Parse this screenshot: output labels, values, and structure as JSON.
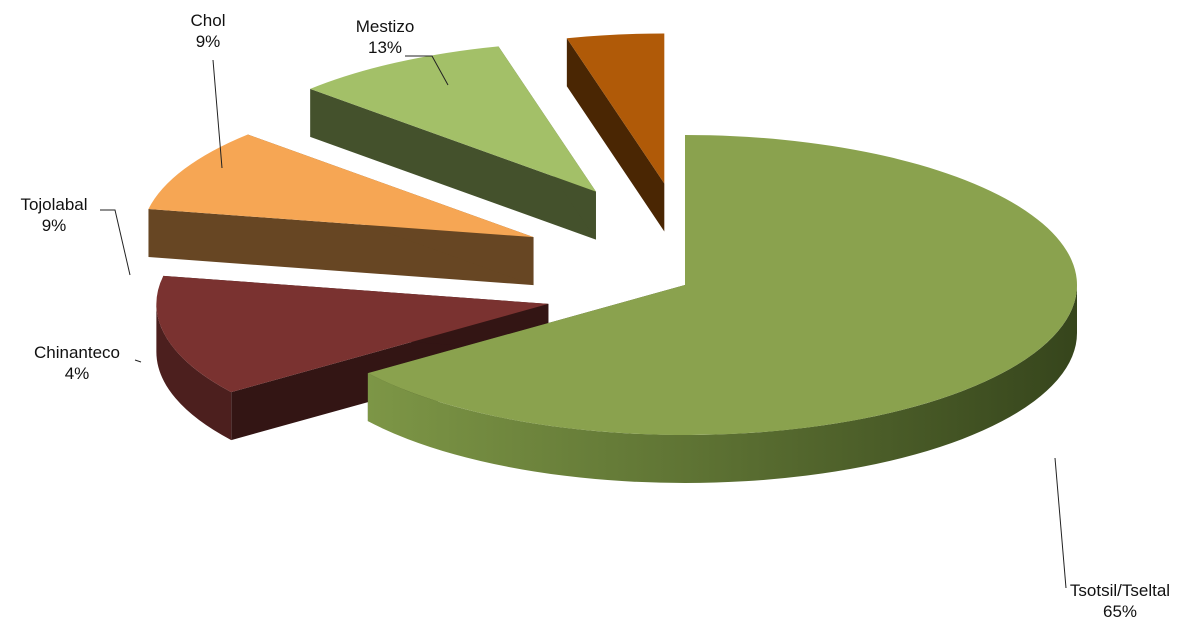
{
  "chart_data": {
    "type": "pie",
    "style": "3d-exploded",
    "slices": [
      {
        "label": "Tsotsil/Tseltal",
        "value": 65,
        "value_label": "65%",
        "color": "#8aa24e"
      },
      {
        "label": "Mestizo",
        "value": 13,
        "value_label": "13%",
        "color": "#7a3230"
      },
      {
        "label": "Chol",
        "value": 9,
        "value_label": "9%",
        "color": "#f6a654"
      },
      {
        "label": "Tojolabal",
        "value": 9,
        "value_label": "9%",
        "color": "#a3c068"
      },
      {
        "label": "Chinanteco",
        "value": 4,
        "value_label": "4%",
        "color": "#b05a08"
      }
    ],
    "legend": "none",
    "data_labels": "outside-with-leader-lines"
  }
}
